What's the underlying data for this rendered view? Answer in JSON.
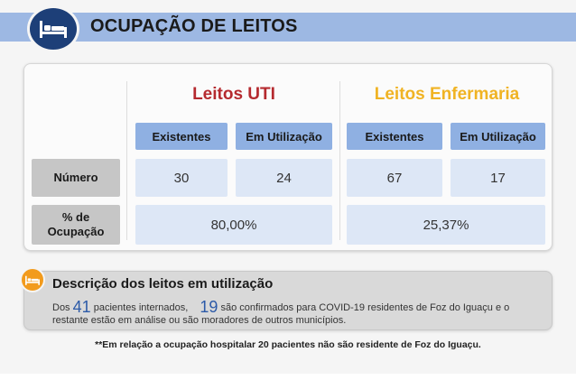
{
  "header": {
    "title": "OCUPAÇÃO DE LEITOS",
    "icon": "bed-icon",
    "color": "#1d3f78",
    "band_color": "#9db8e3"
  },
  "table": {
    "uti": {
      "title": "Leitos UTI",
      "color": "#b52a2f",
      "col_existentes": "Existentes",
      "col_utilizacao": "Em Utilização",
      "numero_existentes": "30",
      "numero_utilizacao": "24",
      "ocupacao": "80,00%"
    },
    "enfermaria": {
      "title": "Leitos Enfermaria",
      "color": "#f0b323",
      "col_existentes": "Existentes",
      "col_utilizacao": "Em Utilização",
      "numero_existentes": "67",
      "numero_utilizacao": "17",
      "ocupacao": "25,37%"
    },
    "row_numero": "Número",
    "row_ocupacao_1": "% de",
    "row_ocupacao_2": "Ocupação"
  },
  "description": {
    "icon": "bed-icon",
    "title": "Descrição dos leitos em utilização",
    "text_dos": "Dos",
    "internados": "41",
    "text_internados": "pacientes internados,",
    "confirmados": "19",
    "text_confirmados": "são confirmados para COVID-19 residentes de Foz do Iguaçu e o",
    "text_line2": "restante estão em análise ou são moradores de outros municípios."
  },
  "footnote": "**Em relação a ocupação hospitalar 20 pacientes não são residente de Foz do Iguaçu."
}
